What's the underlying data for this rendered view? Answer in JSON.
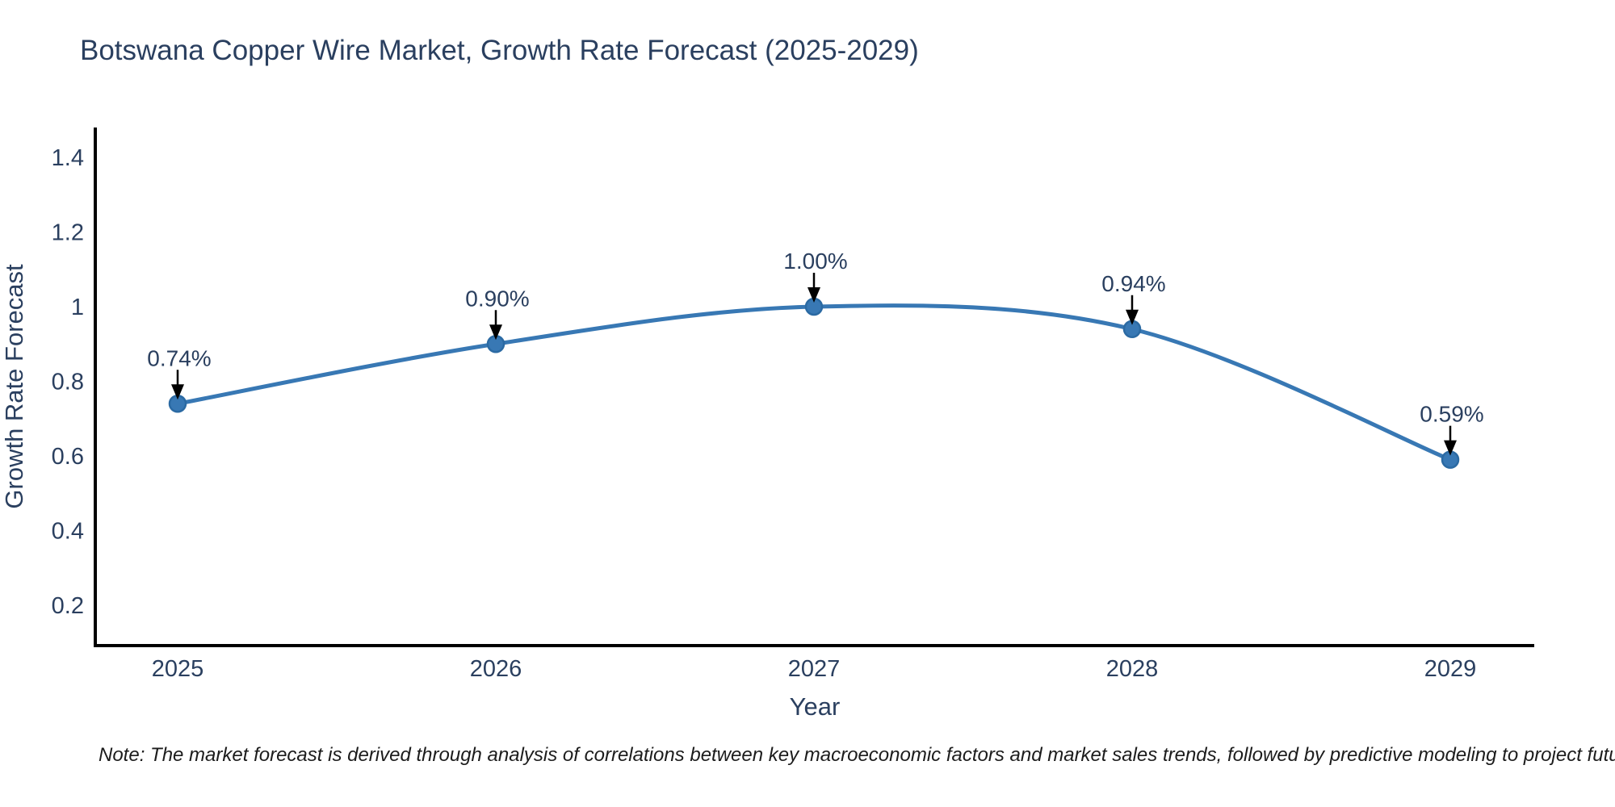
{
  "title": "Botswana Copper Wire Market, Growth Rate Forecast (2025-2029)",
  "note": "Note: The market forecast is derived through analysis of correlations between key macroeconomic factors and market sales trends, followed by predictive modeling to project future sales",
  "colors": {
    "text": "#2a3f5f",
    "axis": "#000000",
    "line": "#3878b4",
    "marker_fill": "#3878b4",
    "marker_edge": "#2b6aa3",
    "arrow": "#000000",
    "note_text": "#1c1c1c",
    "background": "#ffffff"
  },
  "chart_data": {
    "type": "line",
    "title": "Botswana Copper Wire Market, Growth Rate Forecast (2025-2029)",
    "xlabel": "Year",
    "ylabel": "Growth Rate Forecast",
    "categories": [
      "2025",
      "2026",
      "2027",
      "2028",
      "2029"
    ],
    "values": [
      0.74,
      0.9,
      1.0,
      0.94,
      0.59
    ],
    "point_labels": [
      "0.74%",
      "0.90%",
      "1.00%",
      "0.94%",
      "0.59%"
    ],
    "ytick_values": [
      0.2,
      0.4,
      0.6,
      0.8,
      1.0,
      1.2,
      1.4
    ],
    "ytick_labels": [
      "0.2",
      "0.4",
      "0.6",
      "0.8",
      "1",
      "1.2",
      "1.4"
    ],
    "ylim": [
      0.09,
      1.48
    ],
    "grid": false,
    "legend": "none",
    "line_shape": "spline",
    "marker": "circle",
    "annotations_arrows": true
  }
}
